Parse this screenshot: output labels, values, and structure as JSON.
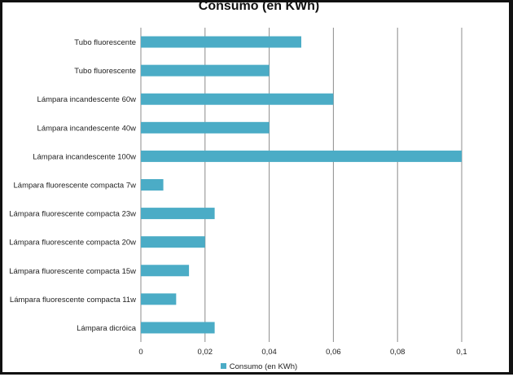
{
  "chart_data": {
    "type": "bar",
    "orientation": "horizontal",
    "title": "Consumo (en KWh)",
    "categories": [
      "Tubo fluorescente",
      "Tubo fluorescente",
      "Lámpara incandescente 60w",
      "Lámpara incandescente 40w",
      "Lámpara incandescente 100w",
      "Lámpara fluorescente compacta 7w",
      "Lámpara fluorescente compacta 23w",
      "Lámpara fluorescente compacta 20w",
      "Lámpara fluorescente compacta 15w",
      "Lámpara fluorescente compacta 11w",
      "Lámpara dicróica"
    ],
    "series": [
      {
        "name": "Consumo (en KWh)",
        "values": [
          0.05,
          0.04,
          0.06,
          0.04,
          0.1,
          0.007,
          0.023,
          0.02,
          0.015,
          0.011,
          0.023
        ]
      }
    ],
    "xlim": [
      0,
      0.12
    ],
    "xticks": [
      0,
      0.02,
      0.04,
      0.06,
      0.08,
      0.1
    ],
    "xtick_labels": [
      "0",
      "0,02",
      "0,04",
      "0,06",
      "0,08",
      "0,1"
    ],
    "xlabel": "",
    "ylabel": "",
    "grid": "vertical",
    "legend_position": "bottom",
    "bar_color": "#4bacc6",
    "grid_color": "#8c8c8c"
  }
}
